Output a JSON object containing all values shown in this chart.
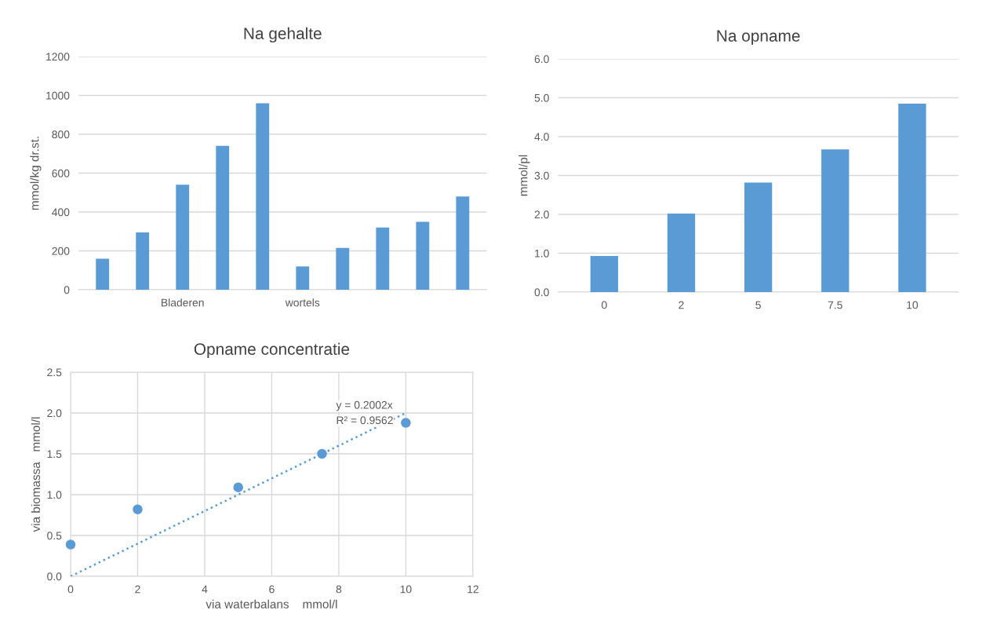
{
  "chart_data": [
    {
      "type": "bar",
      "title": "Na gehalte",
      "ylabel": "mmol/kg dr.st.",
      "categories": [
        null,
        null,
        "Bladeren",
        null,
        null,
        "wortels",
        null,
        null,
        null,
        null
      ],
      "values": [
        160,
        295,
        540,
        740,
        960,
        120,
        215,
        320,
        350,
        480
      ],
      "color": "#5b9bd5",
      "ylim": [
        0,
        1200
      ],
      "yticks": [
        0,
        200,
        400,
        600,
        800,
        1000,
        1200
      ],
      "grid": "y"
    },
    {
      "type": "bar",
      "title": "Na opname",
      "ylabel": "mmol/pl",
      "categories": [
        "0",
        "2",
        "5",
        "7.5",
        "10"
      ],
      "values": [
        0.93,
        2.02,
        2.82,
        3.67,
        4.85
      ],
      "color": "#5b9bd5",
      "ylim": [
        0,
        6
      ],
      "yticks": [
        {
          "value": 0,
          "label": "0.0"
        },
        {
          "value": 1,
          "label": "1.0"
        },
        {
          "value": 2,
          "label": "2.0"
        },
        {
          "value": 3,
          "label": "3.0"
        },
        {
          "value": 4,
          "label": "4.0"
        },
        {
          "value": 5,
          "label": "5.0"
        },
        {
          "value": 6,
          "label": "6.0"
        }
      ],
      "grid": "y"
    },
    {
      "type": "scatter",
      "title": "Opname concentratie",
      "xlabel": "via waterbalans    mmol/l",
      "ylabel": "via biomassa   mmol/l",
      "grid": true,
      "series": [
        {
          "type": "scatter",
          "marker": "circle",
          "color": "#5b9bd5",
          "x": [
            0,
            2,
            5,
            7.5,
            10
          ],
          "values": [
            0.39,
            0.82,
            1.09,
            1.5,
            1.88
          ]
        },
        {
          "type": "line",
          "color": "#5b9bd5",
          "line_style": "dotted",
          "x": [
            0,
            10
          ],
          "values": [
            0,
            2.0
          ]
        }
      ],
      "xlim": [
        0,
        12
      ],
      "xticks": [
        0,
        2,
        4,
        6,
        8,
        10,
        12
      ],
      "ylim": [
        0,
        2.5
      ],
      "yticks": [
        {
          "value": 0,
          "label": "0.0"
        },
        {
          "value": 0.5,
          "label": "0.5"
        },
        {
          "value": 1,
          "label": "1.0"
        },
        {
          "value": 1.5,
          "label": "1.5"
        },
        {
          "value": 2,
          "label": "2.0"
        },
        {
          "value": 2.5,
          "label": "2.5"
        }
      ],
      "annotations": [
        "y = 0.2002x",
        "R² = 0.9562"
      ]
    }
  ]
}
